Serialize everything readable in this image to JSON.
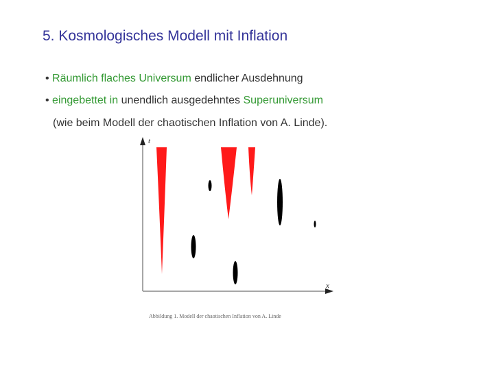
{
  "title": "5. Kosmologisches Modell mit Inflation",
  "bullets": [
    {
      "segments": [
        {
          "text": "Räumlich flaches Universum",
          "color": "#339933"
        },
        {
          "text": " endlicher Ausdehnung",
          "color": "#333333"
        }
      ]
    },
    {
      "segments": [
        {
          "text": "eingebettet in",
          "color": "#339933"
        },
        {
          "text": " unendlich ausgedehntes ",
          "color": "#333333"
        },
        {
          "text": "Superuniversum",
          "color": "#339933"
        }
      ]
    }
  ],
  "continuation": "(wie beim Modell der chaotischen Inflation von A. Linde).",
  "figure": {
    "y_axis_label": "t",
    "x_axis_label": "x",
    "caption": "Abbildung 1. Modell der chaotischen Inflation von A. Linde"
  }
}
